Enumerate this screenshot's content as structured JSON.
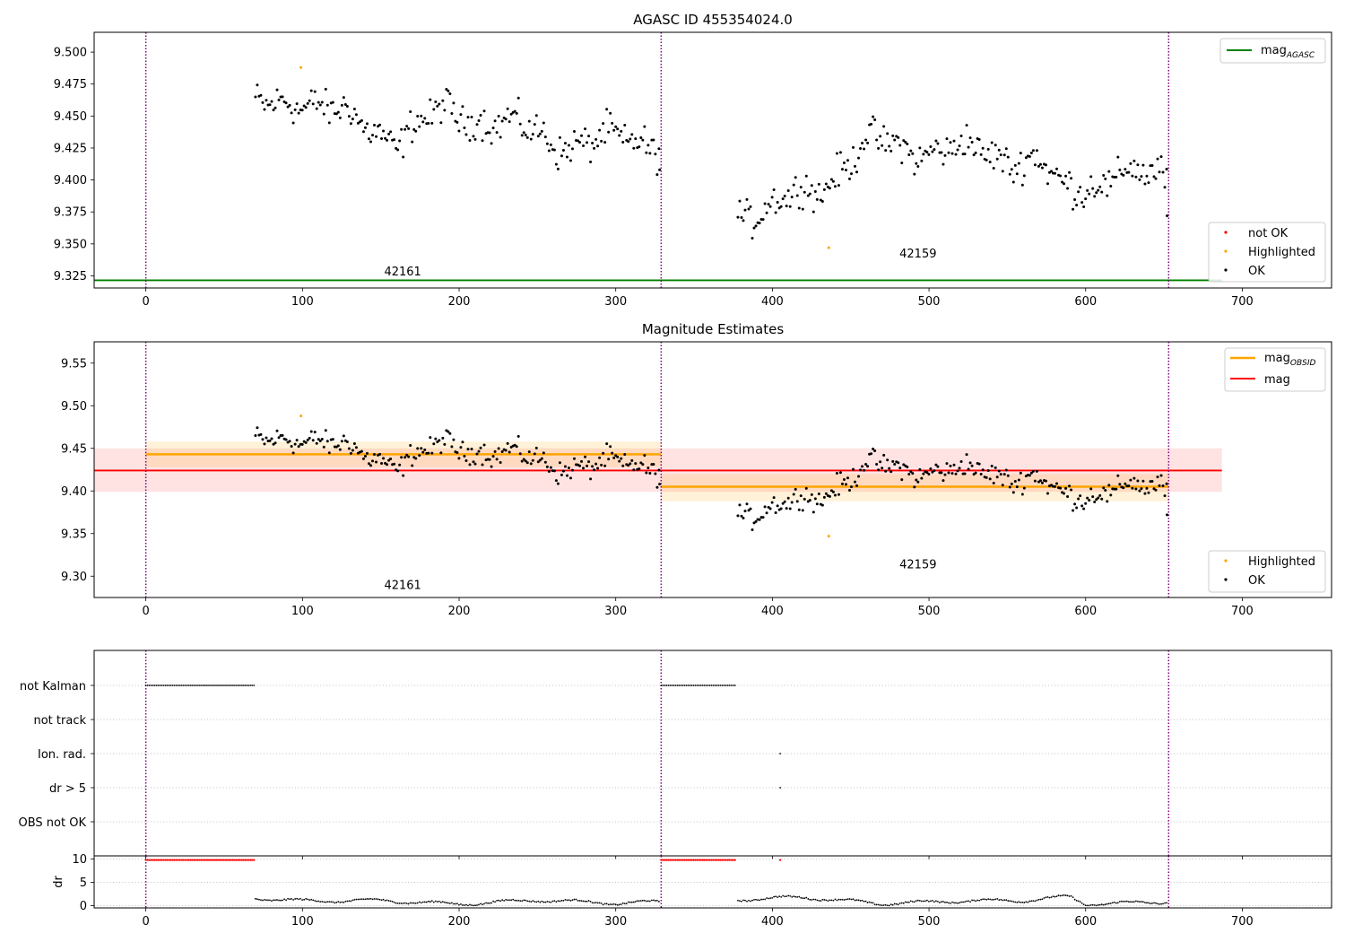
{
  "colors": {
    "ok": "#000000",
    "not_ok": "#ff0000",
    "highlighted": "#ffa500",
    "mag_agasc": "#008000",
    "mag_obsid": "#ffa500",
    "mag": "#ff0000",
    "obsid_boundary": "#800080"
  },
  "chart_data": [
    {
      "type": "scatter",
      "panel": "top",
      "title": "AGASC ID 455354024.0",
      "xlim": [
        -33,
        757
      ],
      "ylim": [
        9.3155,
        9.5155
      ],
      "xticks": [
        0,
        100,
        200,
        300,
        400,
        500,
        600,
        700
      ],
      "yticks": [
        9.325,
        9.35,
        9.375,
        9.4,
        9.425,
        9.45,
        9.475,
        9.5
      ],
      "ytick_labels": [
        "9.325",
        "9.350",
        "9.375",
        "9.400",
        "9.425",
        "9.450",
        "9.475",
        "9.500"
      ],
      "obsid_boundaries": [
        0,
        329,
        653
      ],
      "obsid_labels": [
        {
          "text": "42161",
          "x": 164,
          "y": 9.3255
        },
        {
          "text": "42159",
          "x": 493,
          "y": 9.3395
        }
      ],
      "mag_agasc": {
        "value": 9.3215,
        "x_range": [
          -33,
          687
        ]
      },
      "legend_upper": [
        "mag_AGASC"
      ],
      "legend_lower": [
        "not OK",
        "Highlighted",
        "OK"
      ],
      "series": [
        {
          "name": "OK",
          "segment": 1,
          "x_range": [
            70,
            328
          ],
          "trend": [
            [
              70,
              9.455
            ],
            [
              100,
              9.465
            ],
            [
              130,
              9.447
            ],
            [
              160,
              9.433
            ],
            [
              190,
              9.452
            ],
            [
              220,
              9.448
            ],
            [
              260,
              9.43
            ],
            [
              300,
              9.43
            ],
            [
              328,
              9.43
            ]
          ],
          "scatter": 0.012
        },
        {
          "name": "OK",
          "segment": 2,
          "x_range": [
            378,
            652
          ],
          "trend": [
            [
              378,
              9.375
            ],
            [
              400,
              9.378
            ],
            [
              430,
              9.395
            ],
            [
              460,
              9.428
            ],
            [
              490,
              9.425
            ],
            [
              530,
              9.422
            ],
            [
              570,
              9.415
            ],
            [
              585,
              9.39
            ],
            [
              620,
              9.405
            ],
            [
              652,
              9.4
            ]
          ],
          "scatter": 0.012
        },
        {
          "name": "Highlighted",
          "points": [
            [
              99,
              9.488
            ],
            [
              436,
              9.347
            ]
          ]
        },
        {
          "name": "OK",
          "points": [
            [
              328,
              9.408
            ],
            [
              652,
              9.372
            ]
          ]
        }
      ]
    },
    {
      "type": "scatter",
      "panel": "middle",
      "title": "Magnitude Estimates",
      "xlim": [
        -33,
        757
      ],
      "ylim": [
        9.275,
        9.575
      ],
      "xticks": [
        0,
        100,
        200,
        300,
        400,
        500,
        600,
        700
      ],
      "yticks": [
        9.3,
        9.35,
        9.4,
        9.45,
        9.5,
        9.55
      ],
      "ytick_labels": [
        "9.30",
        "9.35",
        "9.40",
        "9.45",
        "9.50",
        "9.55"
      ],
      "obsid_boundaries": [
        0,
        329,
        653
      ],
      "obsid_labels": [
        {
          "text": "42161",
          "x": 164,
          "y": 9.285
        },
        {
          "text": "42159",
          "x": 493,
          "y": 9.309
        }
      ],
      "mag": {
        "value": 9.424,
        "band": [
          9.399,
          9.45
        ],
        "x_range": [
          -33,
          687
        ]
      },
      "mag_obsid": [
        {
          "value": 9.443,
          "band": [
            9.428,
            9.458
          ],
          "x_range": [
            0,
            329
          ]
        },
        {
          "value": 9.405,
          "band": [
            9.388,
            9.42
          ],
          "x_range": [
            329,
            653
          ]
        }
      ],
      "legend_upper": [
        "mag_OBSID",
        "mag"
      ],
      "legend_lower": [
        "Highlighted",
        "OK"
      ]
    },
    {
      "type": "scatter",
      "panel": "flags",
      "xlim": [
        -33,
        757
      ],
      "xticks": [
        0,
        100,
        200,
        300,
        400,
        500,
        600,
        700
      ],
      "flag_rows": [
        "not Kalman",
        "not track",
        "Ion. rad.",
        "dr > 5",
        "OBS not OK"
      ],
      "flags": {
        "not Kalman": [
          [
            0,
            70
          ],
          [
            329,
            377
          ]
        ],
        "Ion. rad.": [
          [
            405,
            405
          ]
        ],
        "dr > 5": [
          [
            405,
            405
          ]
        ]
      },
      "obsid_boundaries": [
        0,
        329,
        653
      ]
    },
    {
      "type": "scatter",
      "panel": "dr",
      "ylabel": "dr",
      "xlim": [
        -33,
        757
      ],
      "ylim": [
        -0.5,
        10.7
      ],
      "yticks": [
        0,
        5,
        10
      ],
      "xticks": [
        0,
        100,
        200,
        300,
        400,
        500,
        600,
        700
      ],
      "xtick_labels": [
        "0",
        "100",
        "200",
        "300",
        "400",
        "500",
        "600",
        "700"
      ],
      "clipped_red": [
        [
          0,
          70
        ],
        [
          329,
          377
        ],
        [
          405,
          405
        ]
      ],
      "clipped_value": 9.8,
      "trend": [
        [
          70,
          1.6
        ],
        [
          100,
          1.0
        ],
        [
          150,
          1.1
        ],
        [
          200,
          0.3
        ],
        [
          250,
          1.2
        ],
        [
          300,
          0.5
        ],
        [
          328,
          0.8
        ],
        [
          378,
          1.3
        ],
        [
          420,
          1.8
        ],
        [
          470,
          0.4
        ],
        [
          520,
          1.0
        ],
        [
          560,
          1.1
        ],
        [
          590,
          1.9
        ],
        [
          600,
          0.3
        ],
        [
          652,
          0.8
        ]
      ],
      "obsid_boundaries": [
        0,
        329,
        653
      ]
    }
  ]
}
